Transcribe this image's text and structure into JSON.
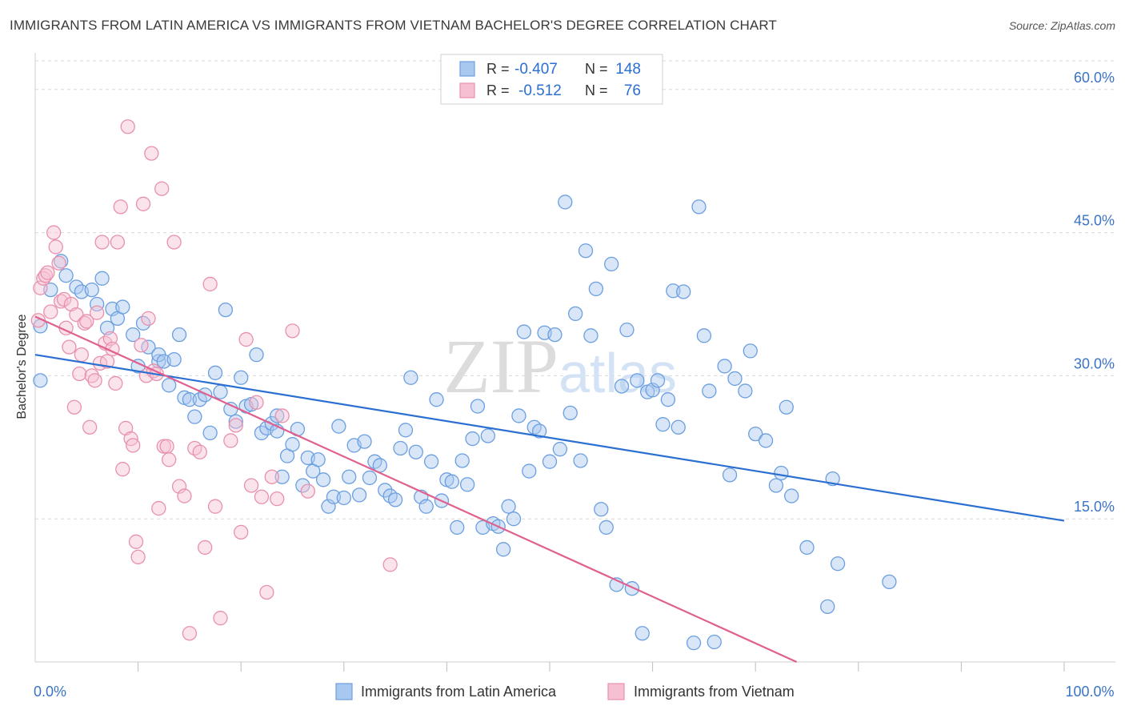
{
  "title": "IMMIGRANTS FROM LATIN AMERICA VS IMMIGRANTS FROM VIETNAM BACHELOR'S DEGREE CORRELATION CHART",
  "source": "Source: ZipAtlas.com",
  "watermark": "ZIPatlas",
  "colors": {
    "blue": "#6b9fe0",
    "blue_fill": "#a9c8f0",
    "blue_line": "#2a6fd1",
    "pink": "#e891ad",
    "pink_fill": "#f6c0d2",
    "pink_line": "#e0608e",
    "axis_text": "#3b73c6",
    "grid": "#d9d9d9"
  },
  "legend": {
    "rows": [
      {
        "r_label": "R = ",
        "r_value": "-0.407",
        "n_label": "N = ",
        "n_value": "148"
      },
      {
        "r_label": "R = ",
        "r_value": "-0.512",
        "n_label": "N = ",
        "n_value": "76"
      }
    ]
  },
  "chart_data": {
    "type": "scatter",
    "xlabel": "",
    "ylabel": "Bachelor's Degree",
    "xlim": [
      0,
      100
    ],
    "ylim": [
      0,
      63
    ],
    "x_tick_labels": [
      {
        "value": 0,
        "label": "0.0%"
      },
      {
        "value": 100,
        "label": "100.0%"
      }
    ],
    "x_minor_ticks": [
      10,
      20,
      30,
      40,
      50,
      60,
      70,
      80,
      90,
      100
    ],
    "y_ticks": [
      {
        "value": 15,
        "label": "15.0%"
      },
      {
        "value": 30,
        "label": "30.0%"
      },
      {
        "value": 45,
        "label": "45.0%"
      },
      {
        "value": 60,
        "label": "60.0%"
      }
    ],
    "grid": true,
    "legend_position": "bottom",
    "series": [
      {
        "name": "Immigrants from Latin America",
        "color_key": "blue",
        "trendline": {
          "x": [
            0,
            100
          ],
          "y": [
            32.2,
            14.8
          ]
        },
        "points": [
          [
            0.5,
            35.2
          ],
          [
            0.5,
            29.5
          ],
          [
            1.5,
            39
          ],
          [
            2.5,
            42
          ],
          [
            3,
            40.5
          ],
          [
            4,
            39.3
          ],
          [
            4.5,
            38.8
          ],
          [
            5.5,
            39
          ],
          [
            6,
            37.5
          ],
          [
            6.5,
            40.2
          ],
          [
            7,
            35
          ],
          [
            7.5,
            37
          ],
          [
            8,
            36
          ],
          [
            8.5,
            37.2
          ],
          [
            9.5,
            34.3
          ],
          [
            10,
            31
          ],
          [
            10.5,
            35.5
          ],
          [
            11,
            33
          ],
          [
            12,
            31.5
          ],
          [
            12,
            32.2
          ],
          [
            12.5,
            31.5
          ],
          [
            13,
            29
          ],
          [
            13.5,
            31.7
          ],
          [
            14,
            34.3
          ],
          [
            14.5,
            27.7
          ],
          [
            15,
            27.5
          ],
          [
            15.5,
            25.7
          ],
          [
            16,
            27.5
          ],
          [
            16.5,
            28
          ],
          [
            17,
            24
          ],
          [
            17.5,
            30.3
          ],
          [
            18,
            28.3
          ],
          [
            18.5,
            36.9
          ],
          [
            19,
            26.5
          ],
          [
            19.5,
            25.2
          ],
          [
            20,
            29.8
          ],
          [
            20.5,
            26.8
          ],
          [
            21,
            27
          ],
          [
            21.5,
            32.2
          ],
          [
            22,
            24
          ],
          [
            22.5,
            24.5
          ],
          [
            23,
            25
          ],
          [
            23.5,
            25.8
          ],
          [
            23.5,
            24.2
          ],
          [
            24,
            19.4
          ],
          [
            24.5,
            21.6
          ],
          [
            25,
            22.8
          ],
          [
            25.5,
            24.4
          ],
          [
            26,
            18.5
          ],
          [
            26.5,
            21.4
          ],
          [
            27,
            20
          ],
          [
            27.5,
            21.2
          ],
          [
            28,
            19.1
          ],
          [
            28.5,
            16.3
          ],
          [
            29,
            17.3
          ],
          [
            29.5,
            24.7
          ],
          [
            30,
            17.2
          ],
          [
            30.5,
            19.4
          ],
          [
            31,
            22.7
          ],
          [
            31.5,
            17.5
          ],
          [
            32,
            23.1
          ],
          [
            32.5,
            19.3
          ],
          [
            33,
            21
          ],
          [
            33.5,
            20.6
          ],
          [
            34,
            18
          ],
          [
            34.5,
            17.4
          ],
          [
            35,
            17
          ],
          [
            35.5,
            22.4
          ],
          [
            36,
            24.3
          ],
          [
            36.5,
            29.8
          ],
          [
            37,
            22
          ],
          [
            37.5,
            17.3
          ],
          [
            38,
            16.3
          ],
          [
            38.5,
            21
          ],
          [
            39,
            27.5
          ],
          [
            39.5,
            16.9
          ],
          [
            40,
            19.1
          ],
          [
            40.5,
            18.9
          ],
          [
            41,
            14.1
          ],
          [
            41.5,
            21.1
          ],
          [
            42,
            18.6
          ],
          [
            42.5,
            23.4
          ],
          [
            43,
            26.8
          ],
          [
            43.5,
            14.1
          ],
          [
            44,
            23.7
          ],
          [
            44.5,
            14.5
          ],
          [
            45,
            14.2
          ],
          [
            45.5,
            11.8
          ],
          [
            46,
            16.3
          ],
          [
            46.5,
            15
          ],
          [
            47,
            25.8
          ],
          [
            47.5,
            34.6
          ],
          [
            48,
            20
          ],
          [
            48.5,
            24.6
          ],
          [
            49,
            24.2
          ],
          [
            49.5,
            34.5
          ],
          [
            50,
            21
          ],
          [
            50.5,
            34.3
          ],
          [
            51,
            22.3
          ],
          [
            51.5,
            48.2
          ],
          [
            52,
            26.1
          ],
          [
            52.5,
            36.5
          ],
          [
            53,
            21.1
          ],
          [
            53.5,
            43.1
          ],
          [
            54,
            34.2
          ],
          [
            54.5,
            39.1
          ],
          [
            55,
            16
          ],
          [
            55.5,
            14.1
          ],
          [
            56,
            41.7
          ],
          [
            56.5,
            8.1
          ],
          [
            57,
            28.9
          ],
          [
            57.5,
            34.8
          ],
          [
            58,
            7.7
          ],
          [
            58.5,
            29.5
          ],
          [
            59,
            3
          ],
          [
            59.5,
            28.3
          ],
          [
            60,
            28.5
          ],
          [
            60.5,
            29.5
          ],
          [
            61,
            24.9
          ],
          [
            61.5,
            27.5
          ],
          [
            62,
            38.9
          ],
          [
            62.5,
            24.6
          ],
          [
            63,
            38.8
          ],
          [
            64,
            2
          ],
          [
            64.5,
            47.7
          ],
          [
            65,
            34.2
          ],
          [
            65.5,
            28.4
          ],
          [
            66,
            2.1
          ],
          [
            67,
            31
          ],
          [
            67.5,
            19.6
          ],
          [
            68,
            29.7
          ],
          [
            69,
            28.4
          ],
          [
            69.5,
            32.6
          ],
          [
            70,
            23.9
          ],
          [
            71,
            23.2
          ],
          [
            72,
            18.5
          ],
          [
            72.5,
            19.8
          ],
          [
            73,
            26.7
          ],
          [
            73.5,
            17.4
          ],
          [
            75,
            12
          ],
          [
            77,
            5.8
          ],
          [
            77.5,
            19.2
          ],
          [
            78,
            10.3
          ],
          [
            83,
            8.4
          ]
        ]
      },
      {
        "name": "Immigrants from Vietnam",
        "color_key": "pink",
        "trendline": {
          "x": [
            0,
            74
          ],
          "y": [
            36.2,
            0
          ]
        },
        "points": [
          [
            0.3,
            35.8
          ],
          [
            0.5,
            39.2
          ],
          [
            0.8,
            40.2
          ],
          [
            1,
            40.5
          ],
          [
            1.2,
            40.8
          ],
          [
            1.5,
            36.7
          ],
          [
            1.8,
            45
          ],
          [
            2,
            43.5
          ],
          [
            2.3,
            41.8
          ],
          [
            2.5,
            37.8
          ],
          [
            2.8,
            38
          ],
          [
            3,
            35
          ],
          [
            3.3,
            33
          ],
          [
            3.5,
            37.5
          ],
          [
            3.8,
            26.7
          ],
          [
            4,
            36.4
          ],
          [
            4.3,
            30.2
          ],
          [
            4.5,
            32.2
          ],
          [
            4.8,
            35.5
          ],
          [
            5,
            35.7
          ],
          [
            5.3,
            24.6
          ],
          [
            5.5,
            30
          ],
          [
            5.8,
            29.5
          ],
          [
            6,
            36.6
          ],
          [
            6.3,
            31.3
          ],
          [
            6.5,
            44
          ],
          [
            6.8,
            33.4
          ],
          [
            7,
            31.5
          ],
          [
            7.3,
            33.9
          ],
          [
            7.5,
            32.8
          ],
          [
            7.8,
            29.2
          ],
          [
            8,
            44
          ],
          [
            8.3,
            47.7
          ],
          [
            8.5,
            20.2
          ],
          [
            8.8,
            24.5
          ],
          [
            9,
            56.1
          ],
          [
            9.3,
            23.4
          ],
          [
            9.5,
            22.7
          ],
          [
            9.8,
            12.6
          ],
          [
            10,
            11
          ],
          [
            10.3,
            33.2
          ],
          [
            10.5,
            48
          ],
          [
            10.8,
            30
          ],
          [
            11,
            36
          ],
          [
            11.3,
            53.3
          ],
          [
            11.5,
            30.5
          ],
          [
            11.8,
            30.2
          ],
          [
            12,
            16.1
          ],
          [
            12.3,
            49.6
          ],
          [
            12.5,
            22.6
          ],
          [
            12.8,
            22.6
          ],
          [
            13,
            21.2
          ],
          [
            13.5,
            44
          ],
          [
            14,
            18.4
          ],
          [
            14.5,
            17.4
          ],
          [
            15,
            3
          ],
          [
            15.5,
            22.4
          ],
          [
            16,
            22
          ],
          [
            16.5,
            12
          ],
          [
            17,
            39.6
          ],
          [
            17.5,
            16.3
          ],
          [
            18,
            4.6
          ],
          [
            19,
            23.2
          ],
          [
            19.5,
            24.8
          ],
          [
            20,
            13.6
          ],
          [
            20.5,
            33.8
          ],
          [
            21,
            18.5
          ],
          [
            21.5,
            27.2
          ],
          [
            22,
            17.3
          ],
          [
            22.5,
            7.3
          ],
          [
            23,
            19.4
          ],
          [
            23.5,
            17.1
          ],
          [
            24,
            25.8
          ],
          [
            25,
            34.7
          ],
          [
            26.5,
            17.9
          ],
          [
            34.5,
            10.2
          ]
        ]
      }
    ]
  }
}
